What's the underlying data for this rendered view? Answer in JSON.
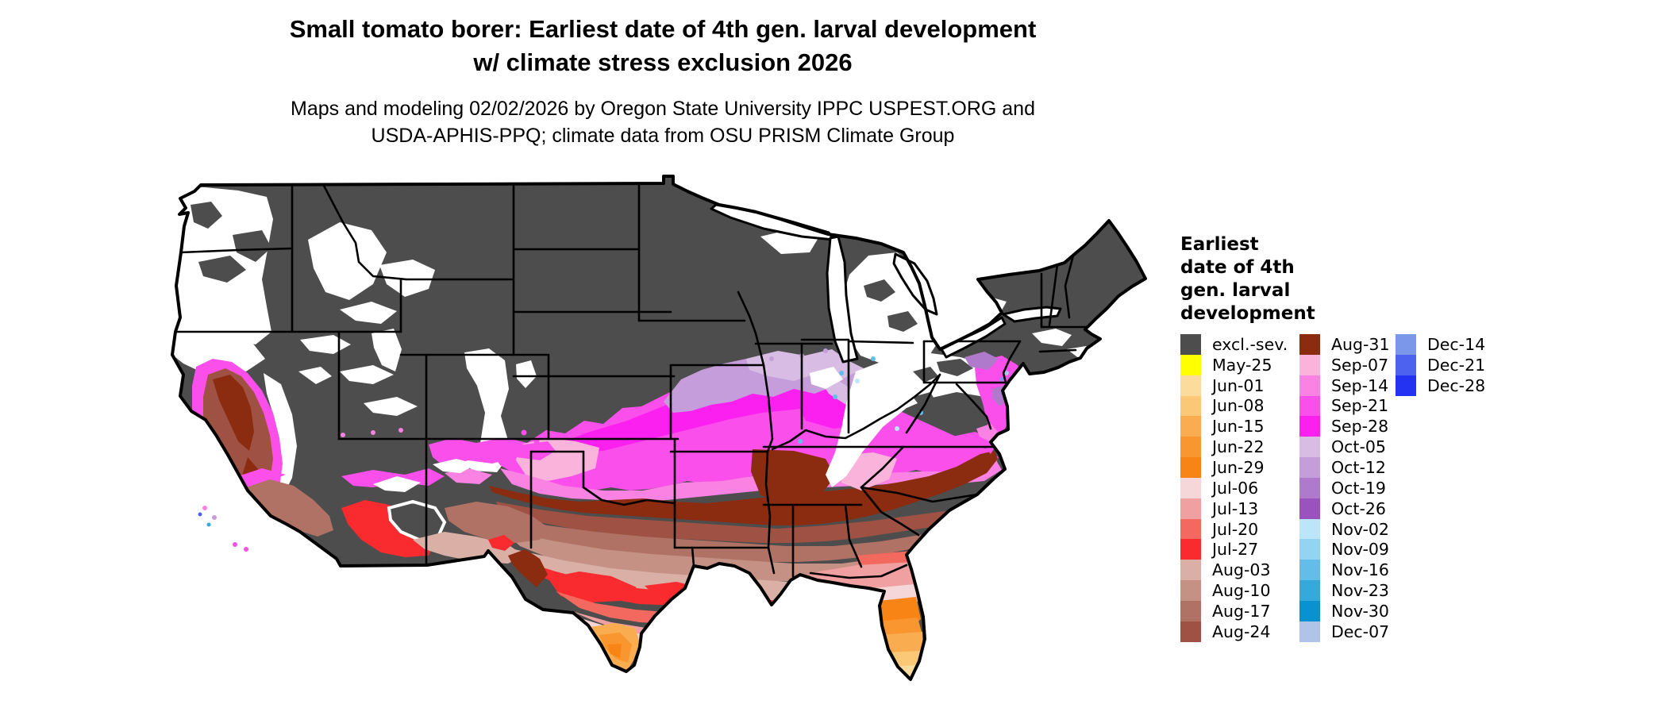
{
  "title": {
    "line1": "Small tomato borer: Earliest date of 4th gen. larval development",
    "line2": "w/ climate stress exclusion 2026"
  },
  "subtitle": {
    "line1": "Maps and modeling 02/02/2026 by Oregon State University IPPC USPEST.ORG and",
    "line2": "USDA-APHIS-PPQ; climate data from OSU PRISM Climate Group"
  },
  "legend": {
    "title_lines": [
      "Earliest",
      "date of 4th",
      "gen. larval",
      "development"
    ],
    "columns": [
      {
        "entries": [
          {
            "label": "excl.-sev.",
            "color": "#4D4D4D"
          },
          {
            "label": "May-25",
            "color": "#FFFF00"
          },
          {
            "label": "Jun-01",
            "color": "#FCDC9C"
          },
          {
            "label": "Jun-08",
            "color": "#FBC878"
          },
          {
            "label": "Jun-15",
            "color": "#FAAC50"
          },
          {
            "label": "Jun-22",
            "color": "#F9962F"
          },
          {
            "label": "Jun-29",
            "color": "#F98416"
          },
          {
            "label": "Jul-06",
            "color": "#F5D6D9"
          },
          {
            "label": "Jul-13",
            "color": "#F1A0A2"
          },
          {
            "label": "Jul-20",
            "color": "#F3685F"
          },
          {
            "label": "Jul-27",
            "color": "#FA2B2E"
          },
          {
            "label": "Aug-03",
            "color": "#D9AFA6"
          },
          {
            "label": "Aug-10",
            "color": "#C59184"
          },
          {
            "label": "Aug-17",
            "color": "#B07265"
          },
          {
            "label": "Aug-24",
            "color": "#9F5243"
          }
        ]
      },
      {
        "entries": [
          {
            "label": "Aug-31",
            "color": "#8B2B10"
          },
          {
            "label": "Sep-07",
            "color": "#FAB4DB"
          },
          {
            "label": "Sep-14",
            "color": "#FA82E2"
          },
          {
            "label": "Sep-21",
            "color": "#FA4FEA"
          },
          {
            "label": "Sep-28",
            "color": "#FB1FF0"
          },
          {
            "label": "Oct-05",
            "color": "#D8BCE4"
          },
          {
            "label": "Oct-12",
            "color": "#C49DDA"
          },
          {
            "label": "Oct-19",
            "color": "#AF7ACB"
          },
          {
            "label": "Oct-26",
            "color": "#9A52BE"
          },
          {
            "label": "Nov-02",
            "color": "#BCE5FA"
          },
          {
            "label": "Nov-09",
            "color": "#92D4F2"
          },
          {
            "label": "Nov-16",
            "color": "#62BEE8"
          },
          {
            "label": "Nov-23",
            "color": "#35A8DC"
          },
          {
            "label": "Nov-30",
            "color": "#0892D2"
          },
          {
            "label": "Dec-07",
            "color": "#AFC4E8"
          }
        ]
      },
      {
        "entries": [
          {
            "label": "Dec-14",
            "color": "#7B97EA"
          },
          {
            "label": "Dec-21",
            "color": "#4D62EE"
          },
          {
            "label": "Dec-28",
            "color": "#2433F2"
          }
        ]
      }
    ]
  },
  "map": {
    "excluded": "#4D4D4D",
    "no_data": "#FFFFFF",
    "outline": "#000000"
  }
}
